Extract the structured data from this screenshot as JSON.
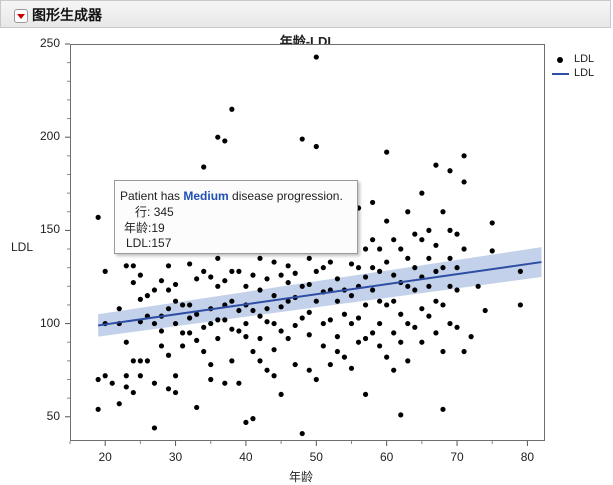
{
  "app": {
    "title": "图形生成器"
  },
  "tooltip": {
    "line_prefix": "Patient has ",
    "highlight": "Medium",
    "line_suffix": " disease progression.",
    "rows": [
      {
        "key": "行:",
        "value": "345"
      },
      {
        "key": "年龄:",
        "value": "19"
      },
      {
        "key": "LDL:",
        "value": "157"
      }
    ]
  },
  "chart_data": {
    "type": "scatter",
    "title": "年龄-LDL",
    "xlabel": "年龄",
    "ylabel": "LDL",
    "xlim": [
      15,
      82.5
    ],
    "ylim": [
      37,
      250
    ],
    "x_ticks": [
      20,
      30,
      40,
      50,
      60,
      70,
      80
    ],
    "y_ticks": [
      50,
      100,
      150,
      200,
      250
    ],
    "legend": {
      "placement": "right",
      "entries": [
        {
          "label": "LDL",
          "kind": "marker",
          "color": "#000000"
        },
        {
          "label": "LDL",
          "kind": "line",
          "color": "#2e4ea3"
        }
      ]
    },
    "fit": {
      "x": [
        19,
        82
      ],
      "y": [
        99,
        133
      ],
      "band_lower": [
        93,
        125
      ],
      "band_upper": [
        105,
        141
      ],
      "color": "#2e4ea3",
      "band_color": "#b8c9e8"
    },
    "points": [
      [
        19,
        157
      ],
      [
        19,
        70
      ],
      [
        19,
        54
      ],
      [
        20,
        128
      ],
      [
        20,
        100
      ],
      [
        20,
        72
      ],
      [
        21,
        68
      ],
      [
        22,
        108
      ],
      [
        22,
        100
      ],
      [
        22,
        57
      ],
      [
        23,
        150
      ],
      [
        23,
        131
      ],
      [
        23,
        90
      ],
      [
        23,
        72
      ],
      [
        23,
        66
      ],
      [
        24,
        131
      ],
      [
        24,
        122
      ],
      [
        24,
        80
      ],
      [
        24,
        63
      ],
      [
        25,
        126
      ],
      [
        25,
        113
      ],
      [
        25,
        101
      ],
      [
        25,
        80
      ],
      [
        25,
        72
      ],
      [
        26,
        145
      ],
      [
        26,
        115
      ],
      [
        26,
        104
      ],
      [
        26,
        80
      ],
      [
        27,
        140
      ],
      [
        27,
        118
      ],
      [
        27,
        100
      ],
      [
        27,
        68
      ],
      [
        27,
        44
      ],
      [
        28,
        123
      ],
      [
        28,
        104
      ],
      [
        28,
        96
      ],
      [
        28,
        88
      ],
      [
        29,
        131
      ],
      [
        29,
        118
      ],
      [
        29,
        108
      ],
      [
        29,
        83
      ],
      [
        29,
        65
      ],
      [
        30,
        121
      ],
      [
        30,
        112
      ],
      [
        30,
        100
      ],
      [
        30,
        72
      ],
      [
        30,
        63
      ],
      [
        31,
        110
      ],
      [
        31,
        95
      ],
      [
        31,
        88
      ],
      [
        32,
        132
      ],
      [
        32,
        110
      ],
      [
        32,
        103
      ],
      [
        32,
        95
      ],
      [
        33,
        124
      ],
      [
        33,
        105
      ],
      [
        33,
        91
      ],
      [
        33,
        55
      ],
      [
        34,
        184
      ],
      [
        34,
        147
      ],
      [
        34,
        128
      ],
      [
        34,
        98
      ],
      [
        34,
        85
      ],
      [
        35,
        125
      ],
      [
        35,
        108
      ],
      [
        35,
        100
      ],
      [
        35,
        78
      ],
      [
        35,
        70
      ],
      [
        36,
        200
      ],
      [
        36,
        135
      ],
      [
        36,
        120
      ],
      [
        36,
        102
      ],
      [
        36,
        92
      ],
      [
        37,
        198
      ],
      [
        37,
        123
      ],
      [
        37,
        110
      ],
      [
        37,
        102
      ],
      [
        37,
        68
      ],
      [
        38,
        215
      ],
      [
        38,
        128
      ],
      [
        38,
        112
      ],
      [
        38,
        97
      ],
      [
        38,
        80
      ],
      [
        39,
        145
      ],
      [
        39,
        128
      ],
      [
        39,
        107
      ],
      [
        39,
        96
      ],
      [
        39,
        68
      ],
      [
        40,
        120
      ],
      [
        40,
        110
      ],
      [
        40,
        100
      ],
      [
        40,
        93
      ],
      [
        40,
        47
      ],
      [
        41,
        143
      ],
      [
        41,
        126
      ],
      [
        41,
        107
      ],
      [
        41,
        85
      ],
      [
        41,
        49
      ],
      [
        42,
        135
      ],
      [
        42,
        118
      ],
      [
        42,
        104
      ],
      [
        42,
        92
      ],
      [
        42,
        80
      ],
      [
        43,
        124
      ],
      [
        43,
        108
      ],
      [
        43,
        101
      ],
      [
        43,
        75
      ],
      [
        44,
        133
      ],
      [
        44,
        115
      ],
      [
        44,
        100
      ],
      [
        44,
        86
      ],
      [
        44,
        72
      ],
      [
        45,
        143
      ],
      [
        45,
        126
      ],
      [
        45,
        109
      ],
      [
        45,
        96
      ],
      [
        45,
        62
      ],
      [
        46,
        131
      ],
      [
        46,
        122
      ],
      [
        46,
        112
      ],
      [
        46,
        92
      ],
      [
        47,
        140
      ],
      [
        47,
        127
      ],
      [
        47,
        114
      ],
      [
        47,
        99
      ],
      [
        47,
        78
      ],
      [
        48,
        199
      ],
      [
        48,
        165
      ],
      [
        48,
        120
      ],
      [
        48,
        103
      ],
      [
        48,
        41
      ],
      [
        49,
        135
      ],
      [
        49,
        121
      ],
      [
        49,
        106
      ],
      [
        49,
        94
      ],
      [
        49,
        75
      ],
      [
        50,
        243
      ],
      [
        50,
        195
      ],
      [
        50,
        128
      ],
      [
        50,
        112
      ],
      [
        50,
        70
      ],
      [
        51,
        145
      ],
      [
        51,
        130
      ],
      [
        51,
        117
      ],
      [
        51,
        100
      ],
      [
        51,
        88
      ],
      [
        52,
        133
      ],
      [
        52,
        118
      ],
      [
        52,
        102
      ],
      [
        52,
        78
      ],
      [
        53,
        147
      ],
      [
        53,
        124
      ],
      [
        53,
        112
      ],
      [
        53,
        93
      ],
      [
        53,
        85
      ],
      [
        54,
        160
      ],
      [
        54,
        140
      ],
      [
        54,
        118
      ],
      [
        54,
        105
      ],
      [
        54,
        82
      ],
      [
        55,
        148
      ],
      [
        55,
        132
      ],
      [
        55,
        115
      ],
      [
        55,
        100
      ],
      [
        55,
        76
      ],
      [
        56,
        162
      ],
      [
        56,
        130
      ],
      [
        56,
        120
      ],
      [
        56,
        103
      ],
      [
        56,
        90
      ],
      [
        57,
        140
      ],
      [
        57,
        125
      ],
      [
        57,
        110
      ],
      [
        57,
        92
      ],
      [
        57,
        62
      ],
      [
        58,
        165
      ],
      [
        58,
        145
      ],
      [
        58,
        130
      ],
      [
        58,
        118
      ],
      [
        58,
        95
      ],
      [
        59,
        140
      ],
      [
        59,
        128
      ],
      [
        59,
        112
      ],
      [
        59,
        100
      ],
      [
        59,
        88
      ],
      [
        60,
        192
      ],
      [
        60,
        155
      ],
      [
        60,
        133
      ],
      [
        60,
        110
      ],
      [
        60,
        82
      ],
      [
        61,
        145
      ],
      [
        61,
        126
      ],
      [
        61,
        112
      ],
      [
        61,
        95
      ],
      [
        61,
        75
      ],
      [
        62,
        140
      ],
      [
        62,
        122
      ],
      [
        62,
        105
      ],
      [
        62,
        90
      ],
      [
        62,
        51
      ],
      [
        63,
        160
      ],
      [
        63,
        135
      ],
      [
        63,
        120
      ],
      [
        63,
        100
      ],
      [
        63,
        80
      ],
      [
        64,
        148
      ],
      [
        64,
        130
      ],
      [
        64,
        118
      ],
      [
        64,
        98
      ],
      [
        65,
        170
      ],
      [
        65,
        145
      ],
      [
        65,
        125
      ],
      [
        65,
        108
      ],
      [
        65,
        90
      ],
      [
        66,
        150
      ],
      [
        66,
        135
      ],
      [
        66,
        120
      ],
      [
        66,
        104
      ],
      [
        67,
        185
      ],
      [
        67,
        142
      ],
      [
        67,
        128
      ],
      [
        67,
        112
      ],
      [
        67,
        95
      ],
      [
        68,
        160
      ],
      [
        68,
        130
      ],
      [
        68,
        110
      ],
      [
        68,
        85
      ],
      [
        68,
        54
      ],
      [
        69,
        182
      ],
      [
        69,
        150
      ],
      [
        69,
        135
      ],
      [
        69,
        120
      ],
      [
        69,
        100
      ],
      [
        70,
        148
      ],
      [
        70,
        130
      ],
      [
        70,
        118
      ],
      [
        70,
        98
      ],
      [
        71,
        190
      ],
      [
        71,
        176
      ],
      [
        71,
        140
      ],
      [
        71,
        85
      ],
      [
        72,
        93
      ],
      [
        73,
        120
      ],
      [
        74,
        107
      ],
      [
        75,
        154
      ],
      [
        75,
        139
      ],
      [
        79,
        128
      ],
      [
        79,
        110
      ]
    ]
  }
}
